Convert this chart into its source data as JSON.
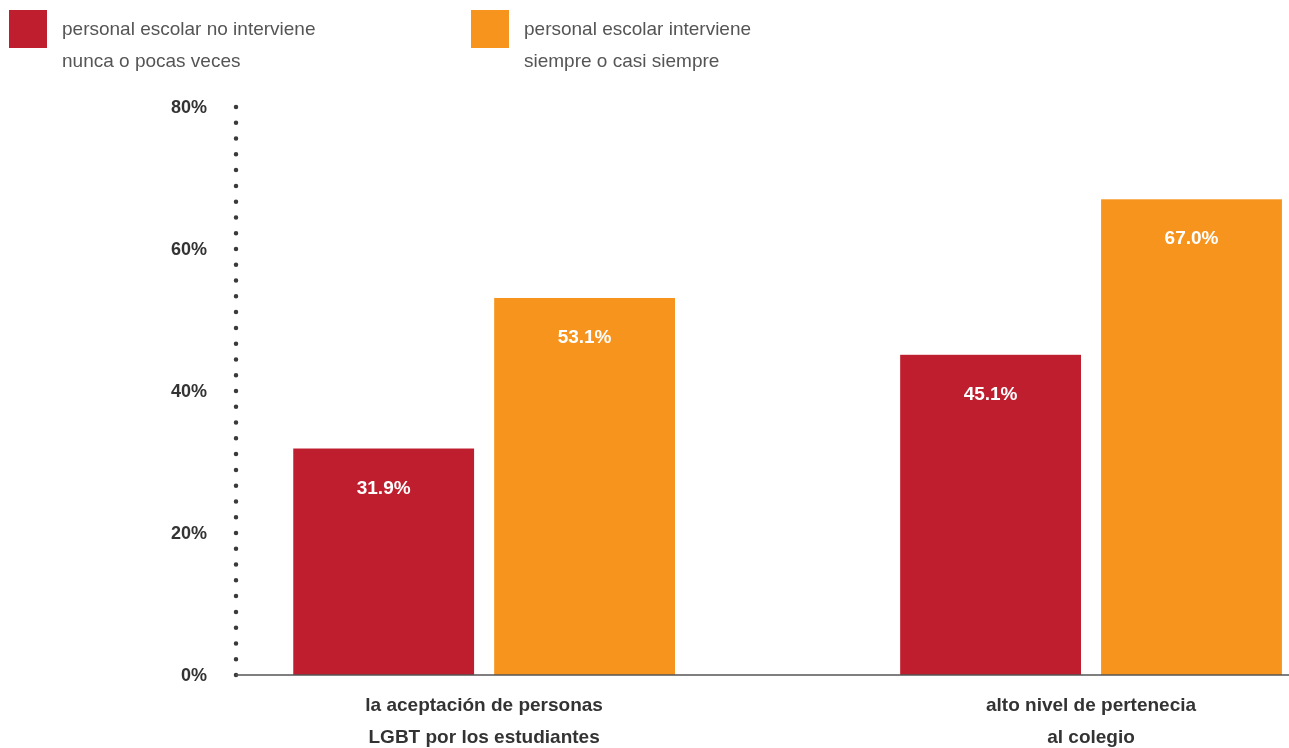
{
  "chart_data": {
    "type": "bar",
    "categories": [
      "la aceptación de personas\nLGBT por los estudiantes",
      "alto nivel de pertenecia\nal colegio"
    ],
    "series": [
      {
        "name": "personal escolar no interviene\nnunca o pocas veces",
        "color": "#be1e2d",
        "values": [
          31.9,
          45.1
        ],
        "value_labels": [
          "31.9%",
          "45.1%"
        ]
      },
      {
        "name": "personal escolar interviene\nsiempre o casi siempre",
        "color": "#f7941d",
        "values": [
          53.1,
          67.0
        ],
        "value_labels": [
          "53.1%",
          "67.0%"
        ]
      }
    ],
    "ylim": [
      0,
      80
    ],
    "yticks": [
      {
        "value": 0,
        "label": "0%"
      },
      {
        "value": 20,
        "label": "20%"
      },
      {
        "value": 40,
        "label": "40%"
      },
      {
        "value": 60,
        "label": "60%"
      },
      {
        "value": 80,
        "label": "80%"
      }
    ],
    "legend": "top left"
  }
}
